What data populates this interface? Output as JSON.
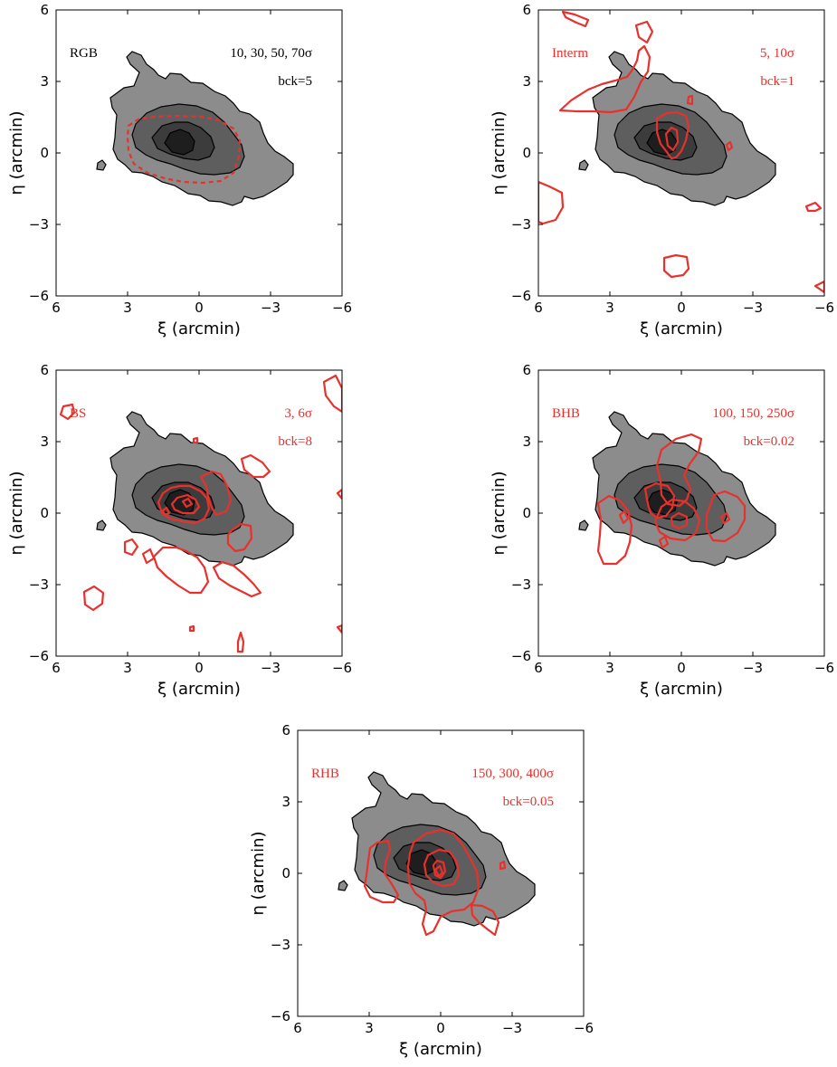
{
  "chart_data": [
    {
      "type": "contour",
      "label": "RGB",
      "sigma_levels": "10, 30, 50, 70σ",
      "bck": "bck=5",
      "label_color": "#000000",
      "xlabel": "ξ (arcmin)",
      "ylabel": "η (arcmin)",
      "xlim": [
        6,
        -6
      ],
      "ylim": [
        -6,
        6
      ],
      "xticks": [
        "6",
        "3",
        "0",
        "−3",
        "−6"
      ],
      "yticks": [
        "6",
        "3",
        "0",
        "−3",
        "−6"
      ],
      "overlay": "dashed"
    },
    {
      "type": "contour",
      "label": "Interm",
      "sigma_levels": "5, 10σ",
      "bck": "bck=1",
      "label_color": "#e8302c",
      "xlabel": "ξ (arcmin)",
      "ylabel": "η (arcmin)",
      "xlim": [
        6,
        -6
      ],
      "ylim": [
        -6,
        6
      ],
      "xticks": [
        "6",
        "3",
        "0",
        "−3",
        "−6"
      ],
      "yticks": [
        "6",
        "3",
        "0",
        "−3",
        "−6"
      ],
      "overlay": "interm"
    },
    {
      "type": "contour",
      "label": "BS",
      "sigma_levels": "3, 6σ",
      "bck": "bck=8",
      "label_color": "#e8302c",
      "xlabel": "ξ (arcmin)",
      "ylabel": "η (arcmin)",
      "xlim": [
        6,
        -6
      ],
      "ylim": [
        -6,
        6
      ],
      "xticks": [
        "6",
        "3",
        "0",
        "−3",
        "−6"
      ],
      "yticks": [
        "6",
        "3",
        "0",
        "−3",
        "−6"
      ],
      "overlay": "bs"
    },
    {
      "type": "contour",
      "label": "BHB",
      "sigma_levels": "100, 150, 250σ",
      "bck": "bck=0.02",
      "label_color": "#e8302c",
      "xlabel": "ξ (arcmin)",
      "ylabel": "η (arcmin)",
      "xlim": [
        6,
        -6
      ],
      "ylim": [
        -6,
        6
      ],
      "xticks": [
        "6",
        "3",
        "0",
        "−3",
        "−6"
      ],
      "yticks": [
        "6",
        "3",
        "0",
        "−3",
        "−6"
      ],
      "overlay": "bhb"
    },
    {
      "type": "contour",
      "label": "RHB",
      "sigma_levels": "150, 300, 400σ",
      "bck": "bck=0.05",
      "label_color": "#e8302c",
      "xlabel": "ξ (arcmin)",
      "ylabel": "η (arcmin)",
      "xlim": [
        6,
        -6
      ],
      "ylim": [
        -6,
        6
      ],
      "xticks": [
        "6",
        "3",
        "0",
        "−3",
        "−6"
      ],
      "yticks": [
        "6",
        "3",
        "0",
        "−3",
        "−6"
      ],
      "overlay": "rhb"
    }
  ],
  "colors": {
    "contour_fill_1": "#8c8c8c",
    "contour_fill_2": "#5e5e5e",
    "contour_fill_3": "#3c3c3c",
    "contour_fill_4": "#1e1e1e",
    "overlay": "#e8302c"
  }
}
